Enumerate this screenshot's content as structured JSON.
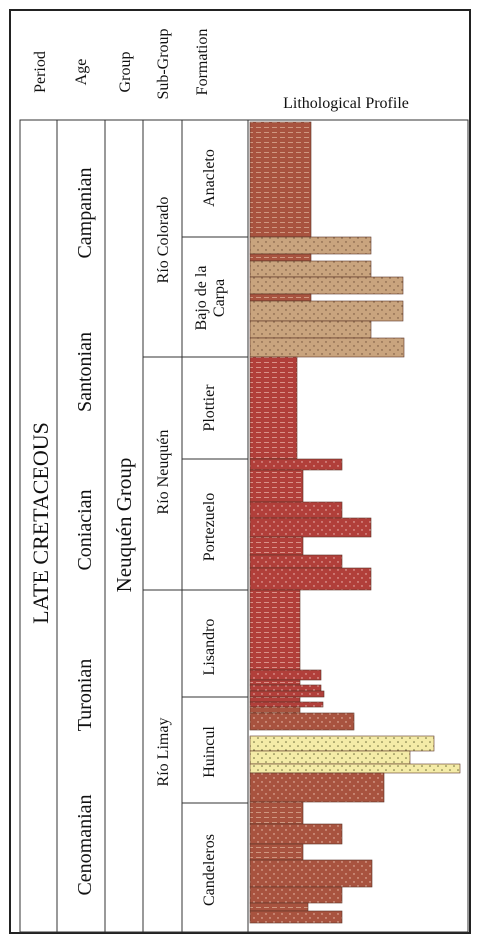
{
  "headers": {
    "period": "Period",
    "age": "Age",
    "group": "Group",
    "subgroup": "Sub-Group",
    "formation": "Formation",
    "profile": "Lithological Profile"
  },
  "period": "LATE CRETACEOUS",
  "ages": [
    "Campanian",
    "Santonian",
    "Coniacian",
    "Turonian",
    "Cenomanian"
  ],
  "group": "Neuquén Group",
  "subgroups": [
    "Río Colorado",
    "Río Neuquén",
    "Río Limay"
  ],
  "formations": [
    "Anacleto",
    "Bajo de la Carpa",
    "Plottier",
    "Portezuelo",
    "Lisandro",
    "Huincul",
    "Candeleros"
  ],
  "colors": {
    "mudstone": "#a8533f",
    "sandstone_red": "#b13f3a",
    "sandstone_tan": "#c9a47e",
    "sandstone_yellow": "#f4eba7",
    "border": "#333333"
  },
  "lithology_legend_note": ""
}
